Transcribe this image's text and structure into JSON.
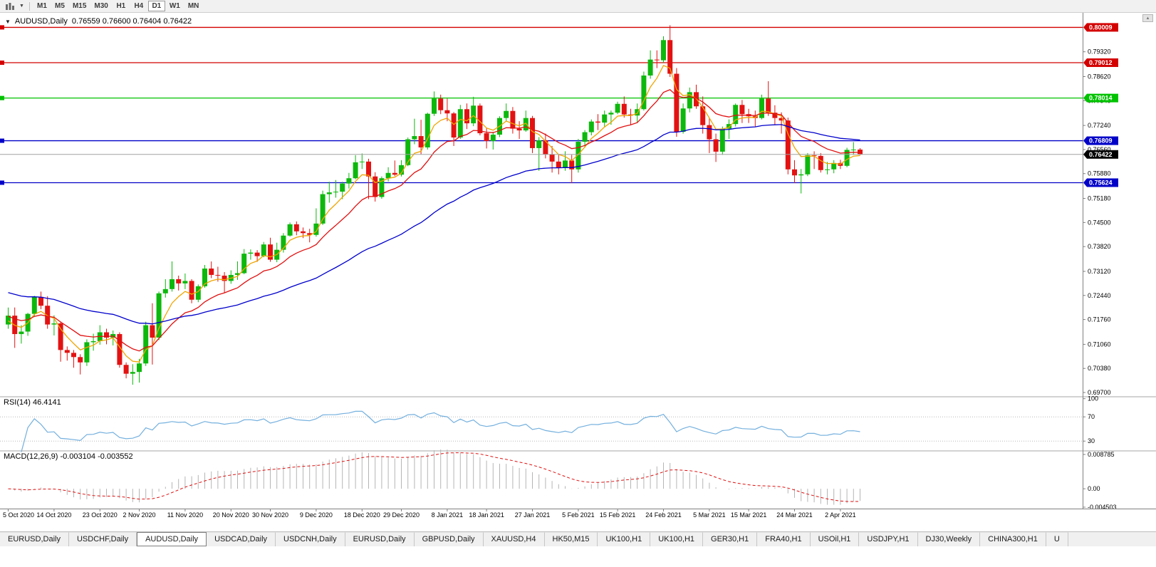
{
  "toolbar": {
    "timeframes": [
      "M1",
      "M5",
      "M15",
      "M30",
      "H1",
      "H4",
      "D1",
      "W1",
      "MN"
    ],
    "active_timeframe": "D1"
  },
  "chart": {
    "title": "AUDUSD,Daily",
    "ohlc_text": "0.76559 0.76600 0.76404 0.76422",
    "y_range": [
      0.696,
      0.8042
    ],
    "y_ticks": [
      "0.79320",
      "0.78620",
      "0.77940",
      "0.77240",
      "0.76560",
      "0.75880",
      "0.75180",
      "0.74500",
      "0.73820",
      "0.73120",
      "0.72440",
      "0.71760",
      "0.71060",
      "0.70380",
      "0.69700"
    ],
    "hlines": [
      {
        "price": 0.80009,
        "label": "0.80009",
        "color": "#d40000"
      },
      {
        "price": 0.79012,
        "label": "0.79012",
        "color": "#d40000"
      },
      {
        "price": 0.78014,
        "label": "0.78014",
        "color": "#00c200"
      },
      {
        "price": 0.76809,
        "label": "0.76809",
        "color": "#0000c8"
      },
      {
        "price": 0.75624,
        "label": "0.75624",
        "color": "#0000c8"
      }
    ],
    "current_price": {
      "value": 0.76422,
      "label": "0.76422",
      "color": "#000000"
    },
    "x_labels": [
      "5 Oct 2020",
      "14 Oct 2020",
      "23 Oct 2020",
      "2 Nov 2020",
      "11 Nov 2020",
      "20 Nov 2020",
      "30 Nov 2020",
      "9 Dec 2020",
      "18 Dec 2020",
      "29 Dec 2020",
      "8 Jan 2021",
      "18 Jan 2021",
      "27 Jan 2021",
      "5 Feb 2021",
      "15 Feb 2021",
      "24 Feb 2021",
      "5 Mar 2021",
      "15 Mar 2021",
      "24 Mar 2021",
      "2 Apr 2021"
    ],
    "x_label_indices": [
      0,
      7,
      14,
      20,
      27,
      34,
      40,
      47,
      54,
      60,
      67,
      73,
      80,
      87,
      93,
      100,
      107,
      113,
      120,
      127
    ]
  },
  "rsi": {
    "label": "RSI(14) 46.4141",
    "value": 46.4141,
    "period": 14,
    "ticks": [
      {
        "label": "100",
        "value": 100
      },
      {
        "label": "70",
        "value": 70
      },
      {
        "label": "30",
        "value": 30
      }
    ],
    "levels": [
      70,
      30
    ],
    "line_color": "#74b0de"
  },
  "macd": {
    "label": "MACD(12,26,9) -0.003104 -0.003552",
    "macd_value": -0.003104,
    "signal_value": -0.003552,
    "params": [
      12,
      26,
      9
    ],
    "range": [
      -0.0048,
      0.009
    ],
    "ticks": [
      {
        "label": "0.008785",
        "value": 0.008785
      },
      {
        "label": "0.00",
        "value": 0
      },
      {
        "label": "-0.004503",
        "value": -0.004503
      }
    ],
    "histogram_color": "#b5b5b5",
    "signal_color": "#e01010"
  },
  "tabs": {
    "active_index": 2,
    "items": [
      {
        "label": "EURUSD,Daily"
      },
      {
        "label": "USDCHF,Daily"
      },
      {
        "label": "AUDUSD,Daily"
      },
      {
        "label": "USDCAD,Daily"
      },
      {
        "label": "USDCNH,Daily"
      },
      {
        "label": "EURUSD,Daily"
      },
      {
        "label": "GBPUSD,Daily"
      },
      {
        "label": "XAUUSD,H4"
      },
      {
        "label": "HK50,M15"
      },
      {
        "label": "UK100,H1"
      },
      {
        "label": "UK100,H1"
      },
      {
        "label": "GER30,H1"
      },
      {
        "label": "FRA40,H1"
      },
      {
        "label": "USOil,H1"
      },
      {
        "label": "USDJPY,H1"
      },
      {
        "label": "DJ30,Weekly"
      },
      {
        "label": "CHINA300,H1"
      },
      {
        "label": "U"
      }
    ]
  },
  "colors": {
    "up": "#0db80d",
    "down": "#e31212",
    "ma_fast": "#efa500",
    "ma_mid": "#e01010",
    "ma_slow": "#0000cc",
    "current_line": "#a0a0a0",
    "scale_border": "#808080"
  },
  "chart_data": {
    "type": "candlestick",
    "symbol": "AUDUSD",
    "timeframe": "Daily",
    "overlays": [
      {
        "name": "MA fast",
        "type": "ema",
        "period": 5,
        "seed": 0.7165,
        "color": "#efa500"
      },
      {
        "name": "MA mid",
        "type": "ema",
        "period": 13,
        "seed": 0.7185,
        "color": "#e01010"
      },
      {
        "name": "MA slow",
        "type": "ema",
        "period": 45,
        "seed": 0.7255,
        "color": "#0000cc"
      }
    ],
    "candles": {
      "open": [
        0.7162,
        0.7187,
        0.7135,
        0.7142,
        0.7192,
        0.724,
        0.7215,
        0.7162,
        0.7165,
        0.709,
        0.7082,
        0.707,
        0.7055,
        0.7112,
        0.7115,
        0.714,
        0.7125,
        0.7135,
        0.7048,
        0.7023,
        0.7028,
        0.7052,
        0.716,
        0.7125,
        0.725,
        0.7262,
        0.729,
        0.7278,
        0.7285,
        0.7232,
        0.727,
        0.732,
        0.7302,
        0.73,
        0.7285,
        0.7302,
        0.7307,
        0.7362,
        0.7365,
        0.7355,
        0.7388,
        0.7345,
        0.7373,
        0.7413,
        0.7445,
        0.7425,
        0.742,
        0.7415,
        0.7447,
        0.753,
        0.7535,
        0.7537,
        0.756,
        0.7575,
        0.762,
        0.7622,
        0.758,
        0.7522,
        0.7575,
        0.759,
        0.7585,
        0.7612,
        0.7685,
        0.7694,
        0.7662,
        0.7757,
        0.78,
        0.7767,
        0.7758,
        0.769,
        0.777,
        0.773,
        0.778,
        0.7702,
        0.768,
        0.7698,
        0.7745,
        0.7765,
        0.7715,
        0.771,
        0.7745,
        0.766,
        0.7682,
        0.7642,
        0.7622,
        0.7605,
        0.7625,
        0.76,
        0.7678,
        0.7705,
        0.7735,
        0.7732,
        0.7755,
        0.776,
        0.7785,
        0.7755,
        0.7752,
        0.777,
        0.7865,
        0.791,
        0.7908,
        0.7965,
        0.787,
        0.7706,
        0.7772,
        0.7818,
        0.7778,
        0.7725,
        0.7685,
        0.765,
        0.7715,
        0.7728,
        0.7782,
        0.7756,
        0.775,
        0.7745,
        0.78,
        0.776,
        0.7745,
        0.7738,
        0.76,
        0.7583,
        0.7586,
        0.764,
        0.7638,
        0.7598,
        0.76,
        0.7618,
        0.761,
        0.7655,
        0.76559
      ],
      "high": [
        0.721,
        0.721,
        0.716,
        0.7195,
        0.7243,
        0.7255,
        0.7242,
        0.7188,
        0.717,
        0.71,
        0.709,
        0.7078,
        0.712,
        0.7136,
        0.716,
        0.715,
        0.7145,
        0.714,
        0.7055,
        0.705,
        0.7065,
        0.717,
        0.7222,
        0.7255,
        0.729,
        0.734,
        0.73,
        0.7306,
        0.729,
        0.7275,
        0.733,
        0.734,
        0.7325,
        0.731,
        0.7315,
        0.734,
        0.7375,
        0.7374,
        0.7372,
        0.7395,
        0.7407,
        0.7393,
        0.742,
        0.745,
        0.7453,
        0.7436,
        0.7432,
        0.749,
        0.754,
        0.7565,
        0.757,
        0.7565,
        0.759,
        0.764,
        0.7645,
        0.763,
        0.7592,
        0.758,
        0.7606,
        0.7625,
        0.7626,
        0.769,
        0.7743,
        0.774,
        0.776,
        0.782,
        0.7811,
        0.78,
        0.7762,
        0.7782,
        0.7786,
        0.7805,
        0.7786,
        0.7716,
        0.7706,
        0.775,
        0.7786,
        0.7776,
        0.7736,
        0.7766,
        0.7751,
        0.7691,
        0.7701,
        0.7666,
        0.7641,
        0.7651,
        0.7641,
        0.7686,
        0.7711,
        0.7741,
        0.7756,
        0.7766,
        0.7766,
        0.7791,
        0.7806,
        0.7771,
        0.7786,
        0.7876,
        0.7936,
        0.7936,
        0.7976,
        0.8007,
        0.7886,
        0.7786,
        0.7831,
        0.7839,
        0.7806,
        0.7746,
        0.7701,
        0.7721,
        0.7741,
        0.7786,
        0.7796,
        0.7771,
        0.7766,
        0.7811,
        0.7849,
        0.7781,
        0.7761,
        0.7746,
        0.7626,
        0.7601,
        0.7646,
        0.7651,
        0.7646,
        0.7621,
        0.7626,
        0.7627,
        0.7661,
        0.7677,
        0.766
      ],
      "low": [
        0.715,
        0.7096,
        0.7108,
        0.713,
        0.7185,
        0.7205,
        0.715,
        0.7131,
        0.7057,
        0.706,
        0.704,
        0.7021,
        0.7045,
        0.7088,
        0.7105,
        0.7106,
        0.7103,
        0.704,
        0.701,
        0.6992,
        0.6998,
        0.7045,
        0.7049,
        0.7118,
        0.7238,
        0.7255,
        0.7258,
        0.7262,
        0.7222,
        0.7225,
        0.7266,
        0.7293,
        0.7283,
        0.7251,
        0.7277,
        0.7288,
        0.7304,
        0.7345,
        0.7339,
        0.7352,
        0.7339,
        0.7338,
        0.7365,
        0.741,
        0.7414,
        0.7406,
        0.7394,
        0.741,
        0.7443,
        0.7506,
        0.752,
        0.7516,
        0.7546,
        0.7572,
        0.7601,
        0.7516,
        0.7509,
        0.7517,
        0.7566,
        0.7581,
        0.758,
        0.7609,
        0.7671,
        0.7643,
        0.7656,
        0.7751,
        0.7756,
        0.7736,
        0.7666,
        0.7686,
        0.7714,
        0.7722,
        0.7696,
        0.7659,
        0.7656,
        0.7691,
        0.7736,
        0.7701,
        0.7686,
        0.7706,
        0.7646,
        0.7596,
        0.7631,
        0.7591,
        0.7586,
        0.7596,
        0.7561,
        0.7591,
        0.7661,
        0.7696,
        0.7711,
        0.7721,
        0.7726,
        0.7756,
        0.7746,
        0.7726,
        0.7731,
        0.7766,
        0.7856,
        0.7886,
        0.7901,
        0.7861,
        0.7692,
        0.7701,
        0.7761,
        0.7771,
        0.7701,
        0.7646,
        0.7621,
        0.7641,
        0.7686,
        0.7721,
        0.7731,
        0.7731,
        0.7721,
        0.7741,
        0.7751,
        0.7726,
        0.7701,
        0.7586,
        0.7561,
        0.7532,
        0.7581,
        0.7601,
        0.7591,
        0.7586,
        0.7589,
        0.7601,
        0.7606,
        0.7641,
        0.76404
      ],
      "close": [
        0.7187,
        0.7135,
        0.7142,
        0.7192,
        0.724,
        0.7215,
        0.7162,
        0.7165,
        0.709,
        0.7082,
        0.707,
        0.7055,
        0.7112,
        0.7115,
        0.714,
        0.7125,
        0.7135,
        0.7048,
        0.7023,
        0.7028,
        0.7052,
        0.716,
        0.7125,
        0.725,
        0.7262,
        0.729,
        0.7278,
        0.7285,
        0.7232,
        0.727,
        0.732,
        0.7302,
        0.73,
        0.7285,
        0.7302,
        0.7307,
        0.7362,
        0.7365,
        0.7355,
        0.7388,
        0.7345,
        0.7373,
        0.7413,
        0.7445,
        0.7425,
        0.742,
        0.7415,
        0.7447,
        0.753,
        0.7535,
        0.7537,
        0.756,
        0.7575,
        0.762,
        0.7622,
        0.758,
        0.7522,
        0.7575,
        0.759,
        0.7585,
        0.7612,
        0.7685,
        0.7694,
        0.7662,
        0.7757,
        0.78,
        0.7767,
        0.7758,
        0.769,
        0.777,
        0.773,
        0.778,
        0.7702,
        0.768,
        0.7698,
        0.7745,
        0.7765,
        0.7715,
        0.771,
        0.7745,
        0.766,
        0.7682,
        0.7642,
        0.7622,
        0.7605,
        0.7625,
        0.76,
        0.7678,
        0.7705,
        0.7735,
        0.7732,
        0.7755,
        0.776,
        0.7785,
        0.7755,
        0.7752,
        0.777,
        0.7865,
        0.791,
        0.7908,
        0.7965,
        0.787,
        0.7706,
        0.7772,
        0.7818,
        0.7778,
        0.7725,
        0.7685,
        0.765,
        0.7715,
        0.7728,
        0.7782,
        0.7756,
        0.775,
        0.7745,
        0.78,
        0.776,
        0.7745,
        0.7738,
        0.76,
        0.7583,
        0.7586,
        0.764,
        0.7638,
        0.7598,
        0.76,
        0.7618,
        0.761,
        0.7655,
        0.76559,
        0.76422
      ]
    }
  }
}
